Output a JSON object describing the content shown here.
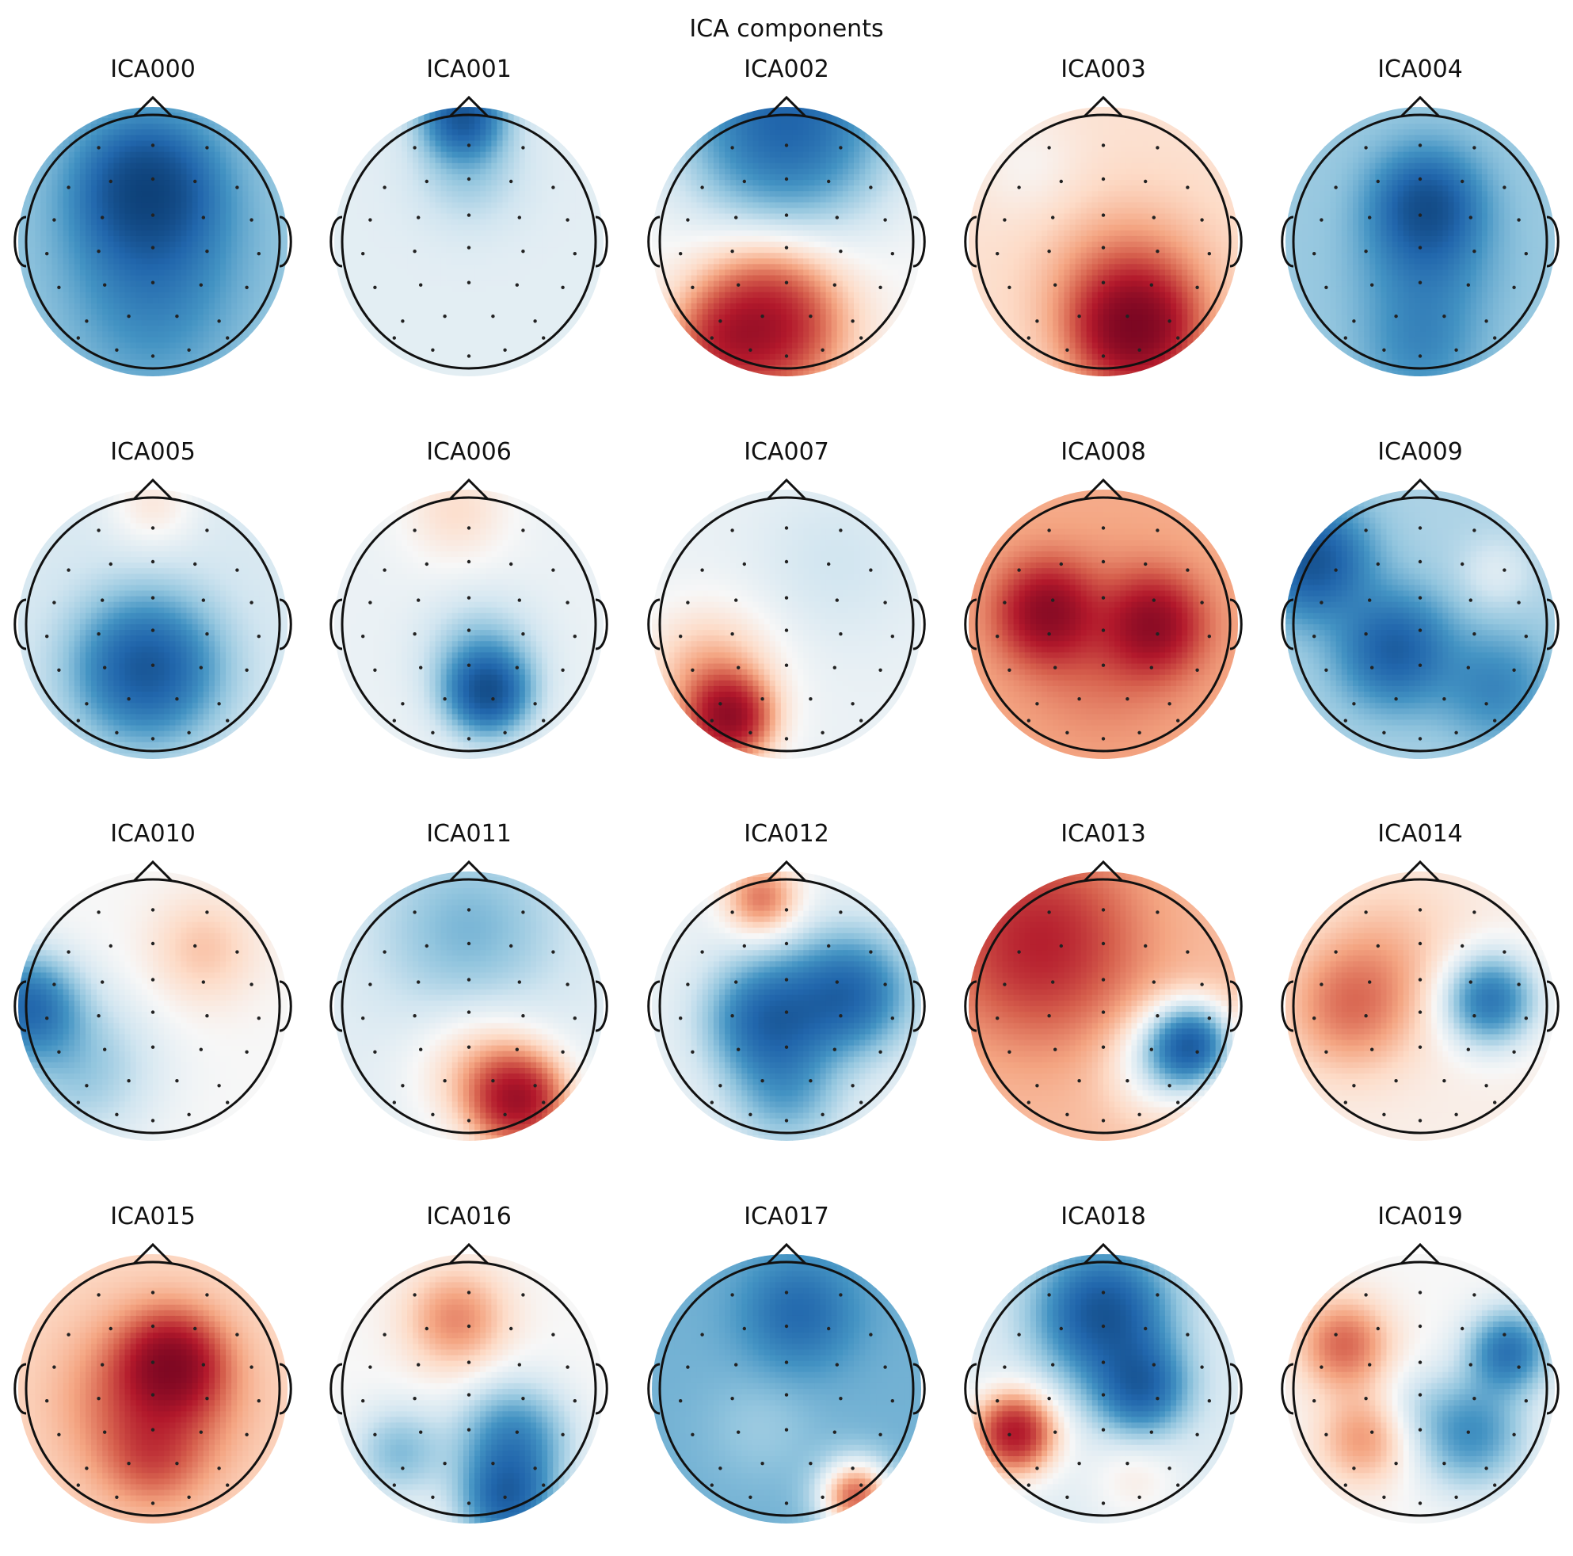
{
  "chart_data": {
    "type": "topomap",
    "title": "ICA components",
    "colormap": [
      "#053061",
      "#2166ac",
      "#4393c3",
      "#92c5de",
      "#d1e5f0",
      "#f7f7f7",
      "#fddbc7",
      "#f4a582",
      "#d6604d",
      "#b2182b",
      "#67001f"
    ],
    "grid": {
      "rows": 4,
      "cols": 5
    },
    "sensors": [
      [
        -0.45,
        -0.78
      ],
      [
        0.0,
        -0.8
      ],
      [
        0.45,
        -0.78
      ],
      [
        -0.7,
        -0.45
      ],
      [
        -0.35,
        -0.5
      ],
      [
        0.0,
        -0.52
      ],
      [
        0.35,
        -0.5
      ],
      [
        0.7,
        -0.45
      ],
      [
        -0.82,
        -0.18
      ],
      [
        -0.42,
        -0.2
      ],
      [
        0.0,
        -0.22
      ],
      [
        0.42,
        -0.2
      ],
      [
        0.82,
        -0.18
      ],
      [
        -0.88,
        0.1
      ],
      [
        -0.45,
        0.08
      ],
      [
        0.0,
        0.05
      ],
      [
        0.45,
        0.08
      ],
      [
        0.88,
        0.1
      ],
      [
        -0.78,
        0.38
      ],
      [
        -0.4,
        0.36
      ],
      [
        0.0,
        0.34
      ],
      [
        0.4,
        0.36
      ],
      [
        0.78,
        0.38
      ],
      [
        -0.55,
        0.66
      ],
      [
        -0.2,
        0.62
      ],
      [
        0.2,
        0.62
      ],
      [
        0.55,
        0.66
      ],
      [
        -0.3,
        0.9
      ],
      [
        0.0,
        0.95
      ],
      [
        0.3,
        0.9
      ],
      [
        0.62,
        0.8
      ],
      [
        -0.62,
        0.8
      ]
    ],
    "components": [
      {
        "name": "ICA000",
        "base": -0.3,
        "blobs": [
          [
            -0.05,
            -0.45,
            -0.8,
            0.35
          ],
          [
            0.0,
            0.05,
            -0.35,
            0.45
          ],
          [
            0.0,
            0.7,
            -0.15,
            0.4
          ]
        ]
      },
      {
        "name": "ICA001",
        "base": -0.08,
        "blobs": [
          [
            -0.05,
            -1.0,
            -0.85,
            0.22
          ],
          [
            0.0,
            -0.55,
            -0.2,
            0.3
          ]
        ]
      },
      {
        "name": "ICA002",
        "base": 0.0,
        "blobs": [
          [
            0.0,
            -0.95,
            -0.85,
            0.55
          ],
          [
            -0.15,
            0.65,
            0.9,
            0.4
          ],
          [
            -0.55,
            0.8,
            0.3,
            0.25
          ]
        ]
      },
      {
        "name": "ICA003",
        "base": 0.12,
        "blobs": [
          [
            0.25,
            0.7,
            0.95,
            0.3
          ],
          [
            0.2,
            0.4,
            0.35,
            0.45
          ],
          [
            -0.6,
            -0.6,
            -0.1,
            0.3
          ]
        ]
      },
      {
        "name": "ICA004",
        "base": -0.3,
        "blobs": [
          [
            0.05,
            -0.3,
            -0.7,
            0.28
          ],
          [
            0.05,
            0.2,
            -0.3,
            0.35
          ],
          [
            0.0,
            0.85,
            -0.25,
            0.3
          ]
        ]
      },
      {
        "name": "ICA005",
        "base": -0.12,
        "blobs": [
          [
            -0.05,
            0.35,
            -0.85,
            0.38
          ],
          [
            0.0,
            -0.95,
            0.2,
            0.25
          ]
        ]
      },
      {
        "name": "ICA006",
        "base": -0.05,
        "blobs": [
          [
            0.15,
            0.55,
            -0.85,
            0.22
          ],
          [
            0.1,
            0.25,
            -0.3,
            0.3
          ],
          [
            -0.1,
            -0.9,
            0.18,
            0.3
          ]
        ]
      },
      {
        "name": "ICA007",
        "base": -0.05,
        "blobs": [
          [
            -0.45,
            0.75,
            0.95,
            0.22
          ],
          [
            -0.6,
            0.4,
            0.35,
            0.35
          ],
          [
            0.4,
            -0.5,
            -0.1,
            0.45
          ]
        ]
      },
      {
        "name": "ICA008",
        "base": 0.3,
        "blobs": [
          [
            -0.45,
            -0.1,
            0.75,
            0.25
          ],
          [
            0.4,
            0.0,
            0.7,
            0.25
          ],
          [
            0.0,
            0.2,
            0.2,
            0.45
          ]
        ]
      },
      {
        "name": "ICA009",
        "base": -0.25,
        "blobs": [
          [
            -0.85,
            -0.5,
            -0.75,
            0.3
          ],
          [
            -0.2,
            0.2,
            -0.65,
            0.3
          ],
          [
            0.6,
            -0.4,
            0.15,
            0.2
          ],
          [
            0.6,
            0.5,
            -0.35,
            0.3
          ]
        ]
      },
      {
        "name": "ICA010",
        "base": 0.0,
        "blobs": [
          [
            -1.0,
            0.0,
            -0.75,
            0.28
          ],
          [
            -0.55,
            0.5,
            -0.3,
            0.4
          ],
          [
            0.4,
            -0.45,
            0.22,
            0.3
          ]
        ]
      },
      {
        "name": "ICA011",
        "base": -0.08,
        "blobs": [
          [
            0.4,
            0.75,
            0.9,
            0.25
          ],
          [
            0.1,
            0.5,
            0.3,
            0.35
          ],
          [
            0.0,
            -0.6,
            -0.3,
            0.5
          ]
        ]
      },
      {
        "name": "ICA012",
        "base": -0.05,
        "blobs": [
          [
            -0.15,
            0.1,
            -0.75,
            0.32
          ],
          [
            0.5,
            -0.1,
            -0.75,
            0.32
          ],
          [
            -0.2,
            -0.85,
            0.5,
            0.2
          ],
          [
            0.0,
            0.7,
            -0.35,
            0.3
          ]
        ]
      },
      {
        "name": "ICA013",
        "base": 0.25,
        "blobs": [
          [
            -0.5,
            -0.5,
            0.55,
            0.5
          ],
          [
            0.7,
            0.3,
            -0.95,
            0.22
          ],
          [
            0.45,
            0.45,
            -0.35,
            0.3
          ]
        ]
      },
      {
        "name": "ICA014",
        "base": 0.05,
        "blobs": [
          [
            -0.55,
            0.0,
            0.4,
            0.35
          ],
          [
            0.55,
            -0.05,
            -0.75,
            0.25
          ],
          [
            -0.2,
            -0.5,
            0.15,
            0.4
          ]
        ]
      },
      {
        "name": "ICA015",
        "base": 0.15,
        "blobs": [
          [
            0.15,
            -0.2,
            0.8,
            0.25
          ],
          [
            0.0,
            0.1,
            0.45,
            0.45
          ],
          [
            0.0,
            0.55,
            0.25,
            0.25
          ]
        ]
      },
      {
        "name": "ICA016",
        "base": 0.0,
        "blobs": [
          [
            -0.1,
            -0.55,
            0.4,
            0.28
          ],
          [
            0.35,
            0.4,
            -0.6,
            0.3
          ],
          [
            0.3,
            0.9,
            -0.75,
            0.25
          ],
          [
            -0.55,
            0.5,
            -0.35,
            0.25
          ]
        ]
      },
      {
        "name": "ICA017",
        "base": -0.4,
        "blobs": [
          [
            0.1,
            -0.6,
            -0.4,
            0.3
          ],
          [
            0.55,
            0.85,
            0.9,
            0.2
          ],
          [
            -0.2,
            0.3,
            0.1,
            0.3
          ]
        ]
      },
      {
        "name": "ICA018",
        "base": -0.1,
        "blobs": [
          [
            0.0,
            -0.6,
            -0.9,
            0.35
          ],
          [
            0.3,
            0.0,
            -0.7,
            0.25
          ],
          [
            -0.7,
            0.35,
            0.95,
            0.22
          ],
          [
            0.25,
            0.7,
            0.15,
            0.25
          ]
        ]
      },
      {
        "name": "ICA019",
        "base": 0.0,
        "blobs": [
          [
            -0.6,
            -0.35,
            0.5,
            0.25
          ],
          [
            -0.45,
            0.4,
            0.35,
            0.25
          ],
          [
            0.7,
            -0.3,
            -0.7,
            0.22
          ],
          [
            0.4,
            0.35,
            -0.55,
            0.3
          ],
          [
            -0.05,
            0.1,
            -0.1,
            0.2
          ]
        ]
      }
    ]
  }
}
